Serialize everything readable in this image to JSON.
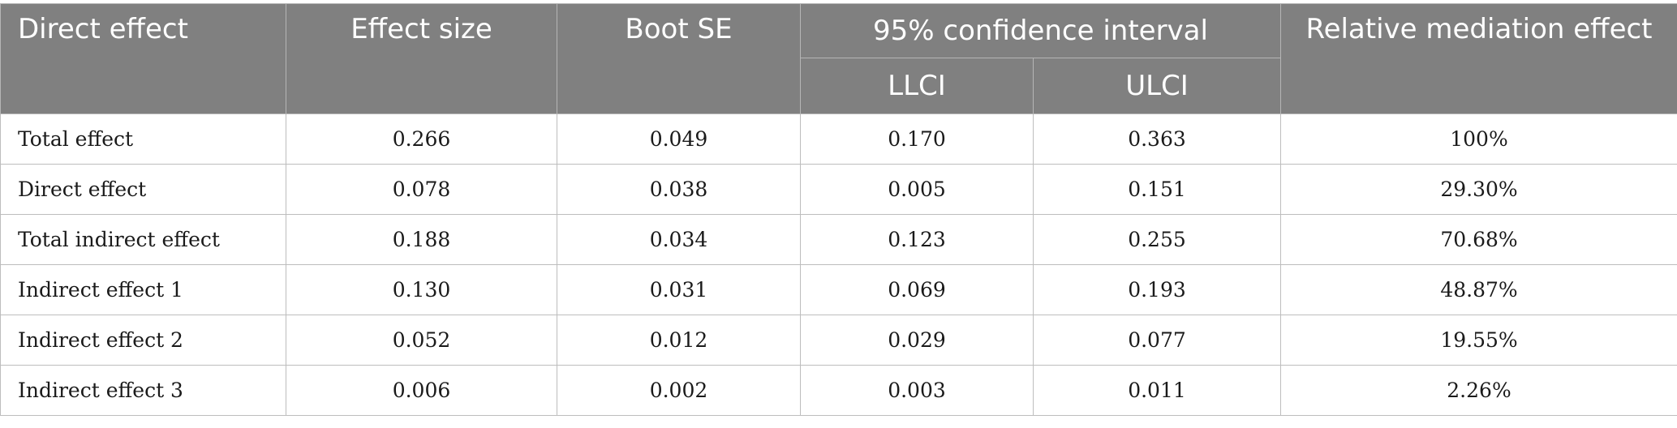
{
  "table": {
    "headers": {
      "col_direct_effect": "Direct effect",
      "col_effect_size": "Effect size",
      "col_boot_se": "Boot SE",
      "col_ci": "95% confidence interval",
      "col_llci": "LLCI",
      "col_ulci": "ULCI",
      "col_relative": "Relative mediation effect"
    },
    "rows": [
      {
        "label": "Total effect",
        "effect_size": "0.266",
        "boot_se": "0.049",
        "llci": "0.170",
        "ulci": "0.363",
        "relative": "100%"
      },
      {
        "label": "Direct effect",
        "effect_size": "0.078",
        "boot_se": "0.038",
        "llci": "0.005",
        "ulci": "0.151",
        "relative": "29.30%"
      },
      {
        "label": "Total indirect effect",
        "effect_size": "0.188",
        "boot_se": "0.034",
        "llci": "0.123",
        "ulci": "0.255",
        "relative": "70.68%"
      },
      {
        "label": "Indirect effect 1",
        "effect_size": "0.130",
        "boot_se": "0.031",
        "llci": "0.069",
        "ulci": "0.193",
        "relative": "48.87%"
      },
      {
        "label": "Indirect effect 2",
        "effect_size": "0.052",
        "boot_se": "0.012",
        "llci": "0.029",
        "ulci": "0.077",
        "relative": "19.55%"
      },
      {
        "label": "Indirect effect 3",
        "effect_size": "0.006",
        "boot_se": "0.002",
        "llci": "0.003",
        "ulci": "0.011",
        "relative": "2.26%"
      }
    ]
  },
  "colors": {
    "header_bg": "#808080",
    "header_text": "#ffffff",
    "grid_line": "#bdbdbd",
    "body_text": "#1a1a1a"
  }
}
